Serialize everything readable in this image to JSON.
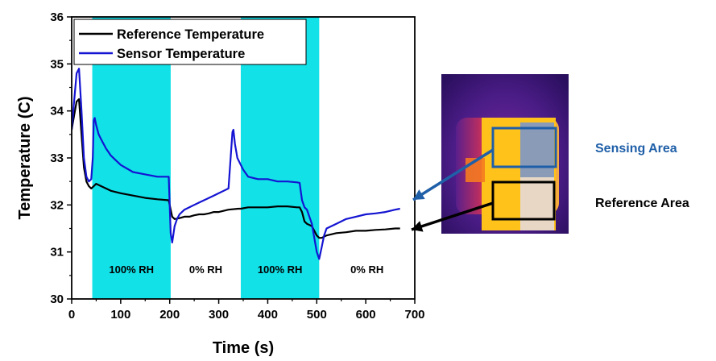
{
  "chart_data": {
    "type": "line",
    "xlabel": "Time (s)",
    "ylabel": "Temperature (C)",
    "xlim": [
      0,
      700
    ],
    "ylim": [
      30,
      36
    ],
    "x_ticks": [
      "0",
      "100",
      "200",
      "300",
      "400",
      "500",
      "600",
      "700"
    ],
    "y_ticks": [
      "30",
      "31",
      "32",
      "33",
      "34",
      "35",
      "36"
    ],
    "grid": false,
    "legend_position": "top-left",
    "phases": [
      {
        "label": "100% RH",
        "start": 42,
        "end": 202,
        "color": "#12e1e8"
      },
      {
        "label": "0% RH",
        "start": 202,
        "end": 345,
        "color": "#ffffff"
      },
      {
        "label": "100% RH",
        "start": 345,
        "end": 505,
        "color": "#12e1e8"
      },
      {
        "label": "0% RH",
        "start": 505,
        "end": 700,
        "color": "#ffffff"
      }
    ],
    "series": [
      {
        "name": "Reference Temperature",
        "color": "#000000",
        "x": [
          0,
          5,
          10,
          15,
          20,
          25,
          30,
          35,
          40,
          45,
          50,
          60,
          70,
          80,
          100,
          125,
          150,
          175,
          198,
          202,
          205,
          210,
          220,
          230,
          240,
          250,
          260,
          270,
          280,
          290,
          300,
          320,
          340,
          345,
          360,
          380,
          400,
          420,
          440,
          460,
          465,
          470,
          475,
          480,
          490,
          500,
          505,
          510,
          520,
          540,
          560,
          580,
          600,
          620,
          640,
          660,
          670
        ],
        "y": [
          33.6,
          33.9,
          34.2,
          34.25,
          33.5,
          32.8,
          32.5,
          32.4,
          32.35,
          32.4,
          32.45,
          32.4,
          32.35,
          32.3,
          32.25,
          32.2,
          32.15,
          32.12,
          32.1,
          31.9,
          31.75,
          31.7,
          31.72,
          31.75,
          31.75,
          31.78,
          31.8,
          31.8,
          31.82,
          31.85,
          31.85,
          31.9,
          31.92,
          31.92,
          31.95,
          31.95,
          31.95,
          31.97,
          31.97,
          31.95,
          31.95,
          31.85,
          31.65,
          31.6,
          31.55,
          31.35,
          31.3,
          31.3,
          31.35,
          31.4,
          31.42,
          31.45,
          31.45,
          31.47,
          31.48,
          31.5,
          31.5
        ]
      },
      {
        "name": "Sensor Temperature",
        "color": "#1414d2",
        "x": [
          0,
          5,
          10,
          15,
          20,
          25,
          30,
          35,
          40,
          43,
          45,
          47,
          50,
          55,
          60,
          70,
          80,
          90,
          100,
          125,
          150,
          175,
          198,
          200,
          202,
          205,
          210,
          215,
          220,
          230,
          240,
          250,
          260,
          270,
          280,
          290,
          300,
          310,
          320,
          328,
          330,
          333,
          338,
          345,
          350,
          360,
          380,
          400,
          420,
          440,
          460,
          465,
          470,
          475,
          480,
          490,
          500,
          505,
          510,
          515,
          520,
          540,
          560,
          580,
          600,
          620,
          640,
          660,
          670
        ],
        "y": [
          33.6,
          34.2,
          34.8,
          34.9,
          34.0,
          33.0,
          32.6,
          32.5,
          32.55,
          33.0,
          33.8,
          33.85,
          33.7,
          33.5,
          33.4,
          33.2,
          33.05,
          32.95,
          32.85,
          32.7,
          32.65,
          32.6,
          32.6,
          32.0,
          31.4,
          31.2,
          31.55,
          31.7,
          31.8,
          31.9,
          31.95,
          32.0,
          32.05,
          32.1,
          32.15,
          32.2,
          32.25,
          32.3,
          32.35,
          33.55,
          33.6,
          33.3,
          33.0,
          32.85,
          32.75,
          32.6,
          32.55,
          32.55,
          32.5,
          32.5,
          32.48,
          32.47,
          32.1,
          31.95,
          31.9,
          31.6,
          31.0,
          30.85,
          31.1,
          31.35,
          31.5,
          31.6,
          31.7,
          31.75,
          31.8,
          31.82,
          31.85,
          31.9,
          31.92
        ]
      }
    ]
  },
  "inset": {
    "sensing_label": "Sensing Area",
    "reference_label": "Reference Area",
    "sensing_color": "#1f5fa8",
    "reference_color": "#000000"
  }
}
